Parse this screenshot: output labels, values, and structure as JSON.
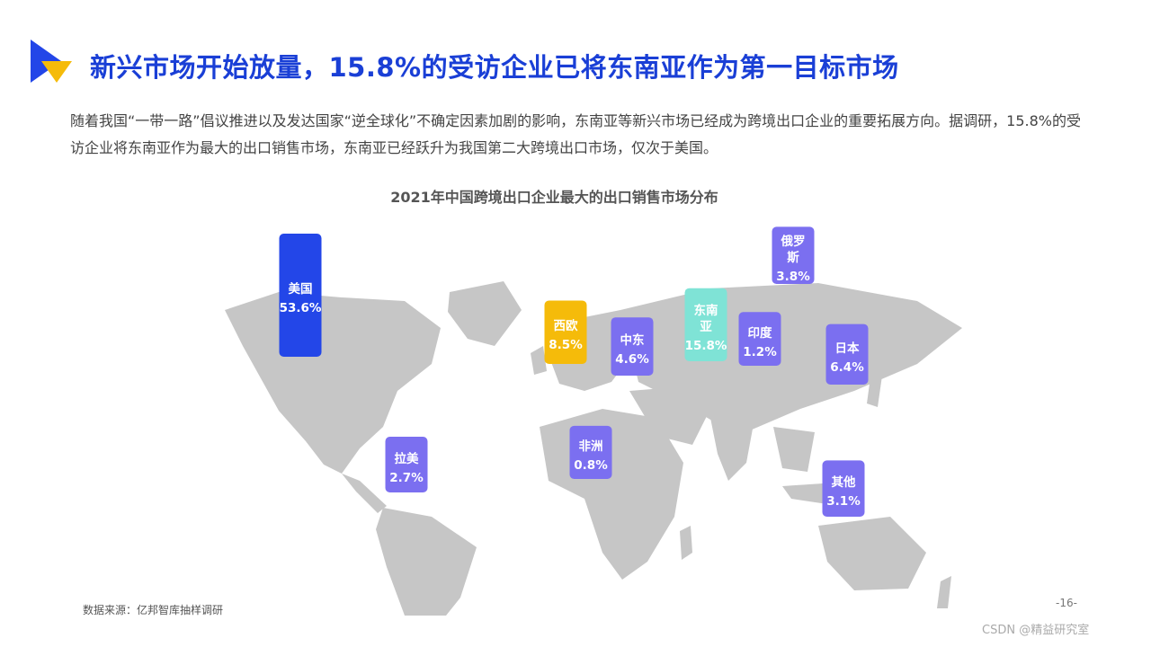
{
  "header": {
    "title": "新兴市场开始放量，15.8%的受访企业已将东南亚作为第一目标市场",
    "intro": "随着我国“一带一路”倡议推进以及发达国家“逆全球化”不确定因素加剧的影响，东南亚等新兴市场已经成为跨境出口企业的重要拓展方向。据调研，15.8%的受访企业将东南亚作为最大的出口销售市场，东南亚已经跃升为我国第二大跨境出口市场，仅次于美国。"
  },
  "colors": {
    "title": "#1a3fd6",
    "map": "#c6c6c6",
    "usa": "#2346e8",
    "europe": "#f5bb0a",
    "sea": "#7fe3d6",
    "default": "#7b6ff0"
  },
  "chart_data": {
    "type": "bar",
    "title": "2021年中国跨境出口企业最大的出口销售市场分布",
    "categories": [
      "美国",
      "西欧",
      "中东",
      "东南亚",
      "印度",
      "俄罗斯",
      "日本",
      "拉美",
      "非洲",
      "其他"
    ],
    "values": [
      53.6,
      8.5,
      4.6,
      15.8,
      1.2,
      3.8,
      6.4,
      2.7,
      0.8,
      3.1
    ],
    "value_labels": [
      "53.6%",
      "8.5%",
      "4.6%",
      "15.8%",
      "1.2%",
      "3.8%",
      "6.4%",
      "2.7%",
      "0.8%",
      "3.1%"
    ],
    "unit": "%",
    "xlabel": "",
    "ylabel": "",
    "grid": false,
    "legend": "none"
  },
  "footer": {
    "source": "数据来源：亿邦智库抽样调研",
    "page": "-16-",
    "watermark": "CSDN @精益研究室"
  }
}
